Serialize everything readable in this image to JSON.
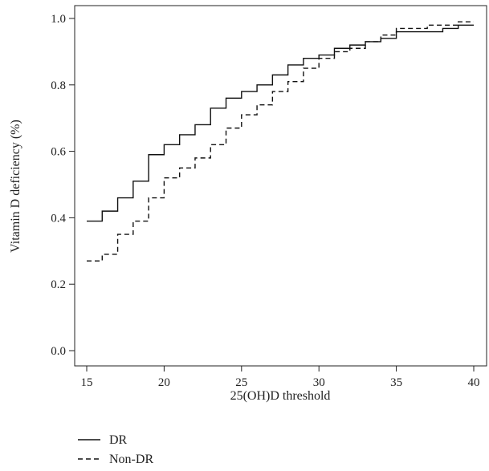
{
  "chart_data": {
    "type": "line",
    "xlabel": "25(OH)D threshold",
    "ylabel": "Vitamin D deficiency (%)",
    "xlim": [
      15,
      40
    ],
    "ylim": [
      0,
      1
    ],
    "x_ticks": [
      15,
      20,
      25,
      30,
      35,
      40
    ],
    "y_ticks": [
      0.0,
      0.2,
      0.4,
      0.6,
      0.8,
      1.0
    ],
    "x_tick_labels": [
      "15",
      "20",
      "25",
      "30",
      "35",
      "40"
    ],
    "y_tick_labels": [
      "0.0",
      "0.2",
      "0.4",
      "0.6",
      "0.8",
      "1.0"
    ],
    "grid": false,
    "legend_position": "bottom-left",
    "step": true,
    "series": [
      {
        "name": "DR",
        "line_style": "solid",
        "x": [
          15,
          16,
          17,
          18,
          19,
          20,
          21,
          22,
          23,
          24,
          25,
          26,
          27,
          28,
          29,
          30,
          31,
          32,
          33,
          34,
          35,
          36,
          37,
          38,
          39,
          40
        ],
        "y": [
          0.39,
          0.42,
          0.46,
          0.51,
          0.59,
          0.62,
          0.65,
          0.68,
          0.73,
          0.76,
          0.78,
          0.8,
          0.83,
          0.86,
          0.88,
          0.89,
          0.91,
          0.92,
          0.93,
          0.94,
          0.96,
          0.96,
          0.96,
          0.97,
          0.98,
          0.98
        ]
      },
      {
        "name": "Non-DR",
        "line_style": "dashed",
        "x": [
          15,
          16,
          17,
          18,
          19,
          20,
          21,
          22,
          23,
          24,
          25,
          26,
          27,
          28,
          29,
          30,
          31,
          32,
          33,
          34,
          35,
          36,
          37,
          38,
          39,
          40
        ],
        "y": [
          0.27,
          0.29,
          0.35,
          0.39,
          0.46,
          0.52,
          0.55,
          0.58,
          0.62,
          0.67,
          0.71,
          0.74,
          0.78,
          0.81,
          0.85,
          0.88,
          0.9,
          0.91,
          0.93,
          0.95,
          0.97,
          0.97,
          0.98,
          0.98,
          0.99,
          0.99
        ]
      }
    ]
  }
}
